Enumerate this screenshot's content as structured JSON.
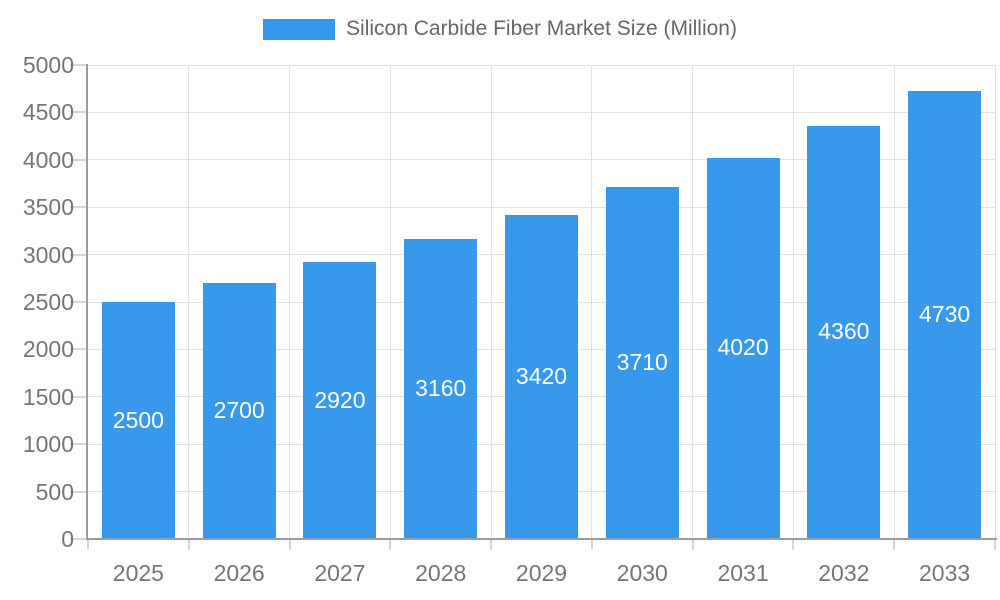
{
  "chart_data": {
    "type": "bar",
    "title": "Silicon Carbide Fiber Market Size (Million)",
    "categories": [
      "2025",
      "2026",
      "2027",
      "2028",
      "2029",
      "2030",
      "2031",
      "2032",
      "2033"
    ],
    "series": [
      {
        "name": "Silicon Carbide Fiber Market Size (Million)",
        "color": "#3898EC",
        "values": [
          2500,
          2700,
          2920,
          3160,
          3420,
          3710,
          4020,
          4360,
          4730
        ]
      }
    ],
    "xlabel": "",
    "ylabel": "",
    "ylim": [
      0,
      5000
    ],
    "yticks": [
      0,
      500,
      1000,
      1500,
      2000,
      2500,
      3000,
      3500,
      4000,
      4500,
      5000
    ],
    "grid": true,
    "legend_position": "top",
    "value_labels": {
      "show": true,
      "color": "#FFFFFF",
      "position": "inside-center"
    }
  },
  "colors": {
    "bar": "#3898EC",
    "grid": "#E2E2E2",
    "axis": "#9C9C9C",
    "tick": "#D6D6D6",
    "tick_label": "#757575",
    "legend_text": "#666666",
    "background": "#FFFFFF"
  }
}
